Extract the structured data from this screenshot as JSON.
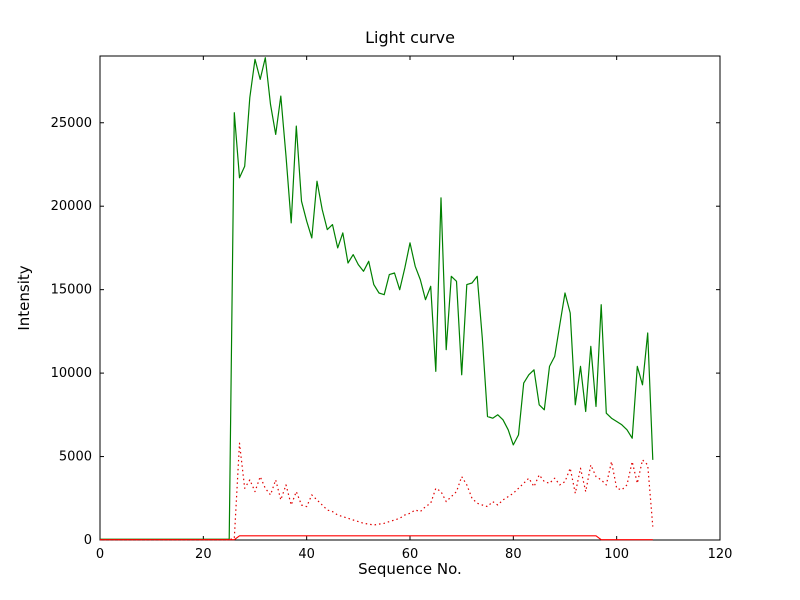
{
  "chart_data": {
    "type": "line",
    "title": "Light curve",
    "xlabel": "Sequence No.",
    "ylabel": "Intensity",
    "xlim": [
      0,
      120
    ],
    "ylim": [
      0,
      29000
    ],
    "xticks": [
      0,
      20,
      40,
      60,
      80,
      100,
      120
    ],
    "yticks": [
      0,
      5000,
      10000,
      15000,
      20000,
      25000
    ],
    "grid": false,
    "legend": null,
    "axis_color": "#000000",
    "background_color": "#ffffff",
    "series": [
      {
        "name": "total-intensity-green",
        "color": "#008000",
        "line_style": "solid",
        "x_start": 0,
        "x_step": 1,
        "values": [
          50,
          50,
          50,
          50,
          50,
          50,
          50,
          50,
          50,
          50,
          50,
          50,
          50,
          50,
          50,
          50,
          50,
          50,
          50,
          50,
          50,
          50,
          50,
          50,
          50,
          50,
          25600,
          21700,
          22400,
          26500,
          28800,
          27600,
          28900,
          26100,
          24300,
          26600,
          23000,
          19000,
          24800,
          20300,
          19100,
          18100,
          21500,
          19800,
          18600,
          18900,
          17500,
          18400,
          16600,
          17100,
          16500,
          16100,
          16700,
          15300,
          14800,
          14700,
          15900,
          16000,
          15000,
          16300,
          17800,
          16400,
          15600,
          14400,
          15200,
          10100,
          20500,
          11400,
          15800,
          15500,
          9900,
          15300,
          15400,
          15800,
          12100,
          7400,
          7300,
          7500,
          7200,
          6600,
          5700,
          6300,
          9400,
          9900,
          10200,
          8100,
          7800,
          10400,
          11000,
          12900,
          14800,
          13600,
          8100,
          10400,
          7700,
          11600,
          8000,
          14100,
          7600,
          7300,
          7100,
          6900,
          6600,
          6100,
          10400,
          9300,
          12400,
          4800
        ]
      },
      {
        "name": "background-intensity-red-dotted",
        "color": "#e00000",
        "line_style": "dotted",
        "x_start": 0,
        "x_step": 1,
        "values": [
          20,
          20,
          20,
          20,
          20,
          20,
          20,
          20,
          20,
          20,
          20,
          20,
          20,
          20,
          20,
          20,
          20,
          20,
          20,
          20,
          20,
          20,
          20,
          20,
          20,
          20,
          100,
          5800,
          3100,
          3600,
          2900,
          3800,
          3100,
          2700,
          3600,
          2400,
          3300,
          2100,
          2900,
          2100,
          2000,
          2700,
          2400,
          2100,
          1800,
          1700,
          1500,
          1400,
          1300,
          1200,
          1100,
          1000,
          950,
          900,
          950,
          1000,
          1100,
          1200,
          1300,
          1500,
          1600,
          1800,
          1700,
          2000,
          2200,
          3100,
          2900,
          2300,
          2600,
          2900,
          3800,
          3300,
          2500,
          2200,
          2100,
          2000,
          2300,
          2100,
          2400,
          2600,
          2800,
          3100,
          3400,
          3700,
          3200,
          3900,
          3500,
          3400,
          3700,
          3300,
          3500,
          4300,
          2800,
          4300,
          2900,
          4500,
          3800,
          3600,
          3300,
          4700,
          3100,
          3000,
          3300,
          4700,
          3400,
          4800,
          4500,
          800
        ]
      },
      {
        "name": "baseline-red-solid",
        "color": "#ff0000",
        "line_style": "solid",
        "x_start": 0,
        "x_step": 1,
        "values": [
          20,
          20,
          20,
          20,
          20,
          20,
          20,
          20,
          20,
          20,
          20,
          20,
          20,
          20,
          20,
          20,
          20,
          20,
          20,
          20,
          20,
          20,
          20,
          20,
          20,
          20,
          20,
          250,
          250,
          250,
          250,
          250,
          250,
          250,
          250,
          250,
          250,
          250,
          250,
          250,
          250,
          250,
          250,
          250,
          250,
          250,
          250,
          250,
          250,
          250,
          250,
          250,
          250,
          250,
          250,
          250,
          250,
          250,
          250,
          250,
          250,
          250,
          250,
          250,
          250,
          250,
          250,
          250,
          250,
          250,
          250,
          250,
          250,
          250,
          250,
          250,
          250,
          250,
          250,
          250,
          250,
          250,
          250,
          250,
          250,
          250,
          250,
          250,
          250,
          250,
          250,
          250,
          250,
          250,
          250,
          250,
          250,
          20,
          20,
          20,
          20,
          20,
          20,
          20,
          20,
          20,
          20,
          20
        ]
      }
    ]
  }
}
